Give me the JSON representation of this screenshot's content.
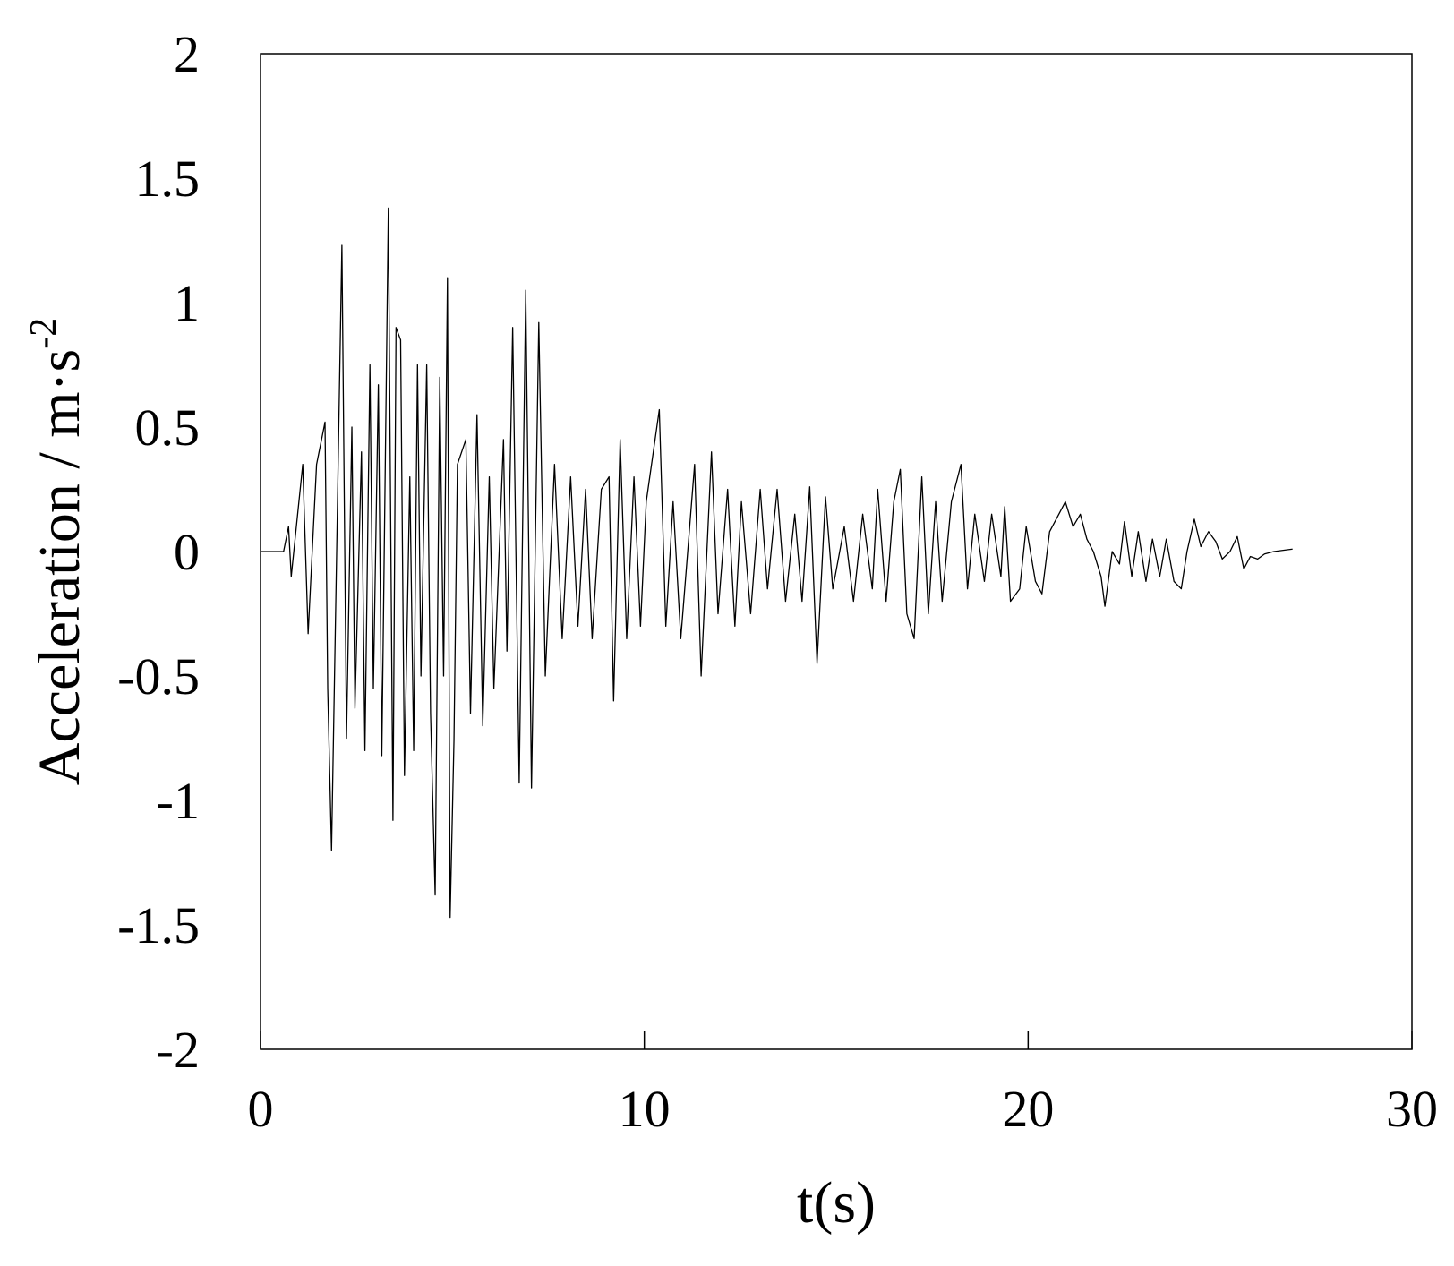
{
  "chart_data": {
    "type": "line",
    "xlabel": "t(s)",
    "ylabel": "Acceleration / m·s",
    "ylabel_sup": "-2",
    "xlim": [
      0,
      30
    ],
    "xticks": [
      0,
      10,
      20,
      30
    ],
    "ylim": [
      -2,
      2
    ],
    "yticks": [
      2,
      1.5,
      1,
      0.5,
      0,
      -0.5,
      -1,
      -1.5,
      -2
    ],
    "grid": false,
    "series": [
      {
        "color": "#000000",
        "x": [
          0,
          0.6,
          0.73,
          0.8,
          1.1,
          1.24,
          1.46,
          1.68,
          1.75,
          1.85,
          2.12,
          2.24,
          2.38,
          2.46,
          2.63,
          2.72,
          2.85,
          2.94,
          3.07,
          3.16,
          3.33,
          3.45,
          3.53,
          3.65,
          3.75,
          3.89,
          3.99,
          4.09,
          4.18,
          4.33,
          4.43,
          4.55,
          4.67,
          4.77,
          4.87,
          4.94,
          5.04,
          5.13,
          5.35,
          5.47,
          5.64,
          5.79,
          5.96,
          6.08,
          6.33,
          6.42,
          6.57,
          6.74,
          6.91,
          7.06,
          7.25,
          7.42,
          7.66,
          7.86,
          8.08,
          8.27,
          8.47,
          8.64,
          8.88,
          9.08,
          9.2,
          9.37,
          9.54,
          9.73,
          9.9,
          10.05,
          10.39,
          10.56,
          10.75,
          10.95,
          11.31,
          11.48,
          11.75,
          11.92,
          12.17,
          12.36,
          12.53,
          12.77,
          13.02,
          13.21,
          13.46,
          13.68,
          13.92,
          14.11,
          14.31,
          14.5,
          14.72,
          14.91,
          15.21,
          15.45,
          15.69,
          15.94,
          16.08,
          16.3,
          16.5,
          16.67,
          16.84,
          17.03,
          17.23,
          17.4,
          17.59,
          17.76,
          18.0,
          18.25,
          18.42,
          18.61,
          18.86,
          19.05,
          19.29,
          19.39,
          19.54,
          19.78,
          19.95,
          20.19,
          20.36,
          20.56,
          20.8,
          20.97,
          21.17,
          21.36,
          21.53,
          21.7,
          21.9,
          22.0,
          22.19,
          22.38,
          22.51,
          22.7,
          22.87,
          23.07,
          23.24,
          23.43,
          23.6,
          23.8,
          23.99,
          24.14,
          24.33,
          24.5,
          24.7,
          24.89,
          25.06,
          25.26,
          25.45,
          25.62,
          25.79,
          25.98,
          26.16,
          26.4,
          26.89
        ],
        "values": [
          0,
          0,
          0.1,
          -0.1,
          0.35,
          -0.33,
          0.35,
          0.52,
          -0.55,
          -1.2,
          1.23,
          -0.75,
          0.5,
          -0.63,
          0.4,
          -0.8,
          0.75,
          -0.55,
          0.67,
          -0.82,
          1.38,
          -1.08,
          0.9,
          0.85,
          -0.9,
          0.3,
          -0.8,
          0.75,
          -0.5,
          0.75,
          -0.65,
          -1.38,
          0.7,
          -0.5,
          1.1,
          -1.47,
          -0.76,
          0.35,
          0.45,
          -0.65,
          0.55,
          -0.7,
          0.3,
          -0.55,
          0.45,
          -0.4,
          0.9,
          -0.93,
          1.05,
          -0.95,
          0.92,
          -0.5,
          0.35,
          -0.35,
          0.3,
          -0.3,
          0.25,
          -0.35,
          0.25,
          0.3,
          -0.6,
          0.45,
          -0.35,
          0.3,
          -0.3,
          0.2,
          0.57,
          -0.3,
          0.2,
          -0.35,
          0.35,
          -0.5,
          0.4,
          -0.25,
          0.25,
          -0.3,
          0.2,
          -0.25,
          0.25,
          -0.15,
          0.25,
          -0.2,
          0.15,
          -0.2,
          0.26,
          -0.45,
          0.22,
          -0.15,
          0.1,
          -0.2,
          0.15,
          -0.15,
          0.25,
          -0.2,
          0.2,
          0.33,
          -0.25,
          -0.35,
          0.3,
          -0.25,
          0.2,
          -0.2,
          0.2,
          0.35,
          -0.15,
          0.15,
          -0.12,
          0.15,
          -0.1,
          0.18,
          -0.2,
          -0.15,
          0.1,
          -0.12,
          -0.17,
          0.08,
          0.15,
          0.2,
          0.1,
          0.15,
          0.05,
          0,
          -0.1,
          -0.22,
          0,
          -0.05,
          0.12,
          -0.1,
          0.08,
          -0.12,
          0.05,
          -0.1,
          0.05,
          -0.12,
          -0.15,
          0,
          0.13,
          0.02,
          0.08,
          0.04,
          -0.03,
          0,
          0.06,
          -0.07,
          -0.02,
          -0.03,
          -0.01,
          0,
          0.01
        ]
      }
    ]
  }
}
